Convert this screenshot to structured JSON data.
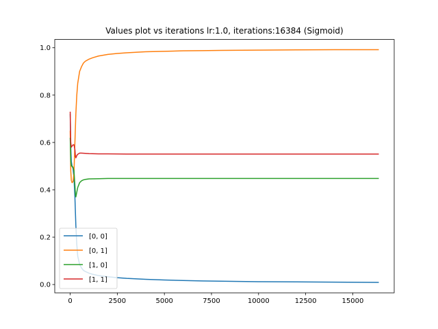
{
  "chart_data": {
    "type": "line",
    "title": "Values plot vs iterations lr:1.0, iterations:16384 (Sigmoid)",
    "xlabel": "",
    "ylabel": "",
    "xlim": [
      -820,
      17200
    ],
    "ylim": [
      -0.035,
      1.035
    ],
    "x_ticks": [
      0,
      2500,
      5000,
      7500,
      10000,
      12500,
      15000
    ],
    "x_tick_labels": [
      "0",
      "2500",
      "5000",
      "7500",
      "10000",
      "12500",
      "15000"
    ],
    "y_ticks": [
      0.0,
      0.2,
      0.4,
      0.6,
      0.8,
      1.0
    ],
    "y_tick_labels": [
      "0.0",
      "0.2",
      "0.4",
      "0.6",
      "0.8",
      "1.0"
    ],
    "grid": false,
    "legend_position": "lower-left",
    "series": [
      {
        "name": "[0, 0]",
        "color": "#1f77b4",
        "x": [
          0,
          30,
          60,
          100,
          150,
          200,
          250,
          300,
          350,
          400,
          500,
          600,
          700,
          800,
          1000,
          1200,
          1500,
          2000,
          2500,
          3000,
          4000,
          5000,
          6000,
          7000,
          8000,
          10000,
          12000,
          14000,
          16383
        ],
        "y": [
          0.72,
          0.58,
          0.52,
          0.5,
          0.49,
          0.45,
          0.37,
          0.25,
          0.17,
          0.12,
          0.085,
          0.07,
          0.06,
          0.055,
          0.048,
          0.043,
          0.038,
          0.033,
          0.029,
          0.026,
          0.022,
          0.019,
          0.017,
          0.015,
          0.014,
          0.012,
          0.011,
          0.01,
          0.009
        ]
      },
      {
        "name": "[0, 1]",
        "color": "#ff7f0e",
        "x": [
          0,
          30,
          60,
          100,
          150,
          200,
          250,
          300,
          350,
          400,
          500,
          600,
          700,
          800,
          1000,
          1200,
          1500,
          2000,
          2500,
          3000,
          4000,
          5000,
          6000,
          7000,
          8000,
          10000,
          12000,
          14000,
          16383
        ],
        "y": [
          0.65,
          0.48,
          0.44,
          0.43,
          0.435,
          0.47,
          0.6,
          0.72,
          0.8,
          0.85,
          0.9,
          0.92,
          0.935,
          0.943,
          0.952,
          0.958,
          0.965,
          0.972,
          0.976,
          0.979,
          0.983,
          0.985,
          0.987,
          0.988,
          0.989,
          0.99,
          0.991,
          0.992,
          0.992
        ]
      },
      {
        "name": "[1, 0]",
        "color": "#2ca02c",
        "x": [
          0,
          30,
          60,
          100,
          150,
          200,
          250,
          280,
          300,
          350,
          400,
          500,
          600,
          700,
          800,
          1000,
          1500,
          2000,
          3000,
          5000,
          8000,
          12000,
          16383
        ],
        "y": [
          0.62,
          0.52,
          0.5,
          0.5,
          0.495,
          0.48,
          0.42,
          0.38,
          0.37,
          0.39,
          0.41,
          0.43,
          0.438,
          0.442,
          0.444,
          0.446,
          0.447,
          0.448,
          0.448,
          0.448,
          0.448,
          0.448,
          0.448
        ]
      },
      {
        "name": "[1, 1]",
        "color": "#d62728",
        "x": [
          0,
          30,
          60,
          100,
          150,
          200,
          250,
          280,
          300,
          350,
          400,
          500,
          600,
          800,
          1000,
          1500,
          2000,
          3000,
          5000,
          8000,
          12000,
          16383
        ],
        "y": [
          0.73,
          0.6,
          0.58,
          0.585,
          0.59,
          0.59,
          0.57,
          0.54,
          0.535,
          0.545,
          0.55,
          0.555,
          0.555,
          0.554,
          0.553,
          0.552,
          0.552,
          0.551,
          0.551,
          0.551,
          0.551,
          0.551
        ]
      }
    ]
  }
}
